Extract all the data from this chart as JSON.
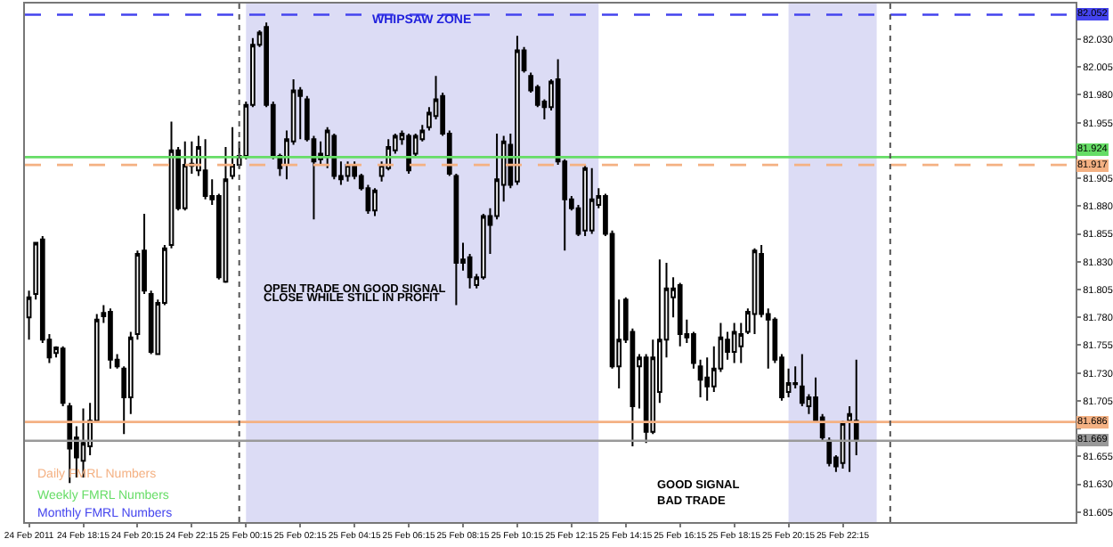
{
  "chart_data": {
    "type": "candlestick",
    "x": [
      "2011-02-24T16:15",
      "2011-02-24T16:30",
      "2011-02-24T16:45",
      "2011-02-24T17:00",
      "2011-02-24T17:15",
      "2011-02-24T17:30",
      "2011-02-24T17:45",
      "2011-02-24T18:00",
      "2011-02-24T18:15",
      "2011-02-24T18:30",
      "2011-02-24T18:45",
      "2011-02-24T19:00",
      "2011-02-24T19:15",
      "2011-02-24T19:30",
      "2011-02-24T19:45",
      "2011-02-24T20:00",
      "2011-02-24T20:15",
      "2011-02-24T20:30",
      "2011-02-24T20:45",
      "2011-02-24T21:00",
      "2011-02-24T21:15",
      "2011-02-24T21:30",
      "2011-02-24T21:45",
      "2011-02-24T22:00",
      "2011-02-24T22:15",
      "2011-02-24T22:30",
      "2011-02-24T22:45",
      "2011-02-24T23:00",
      "2011-02-24T23:15",
      "2011-02-24T23:30",
      "2011-02-24T23:45",
      "2011-02-25T00:00",
      "2011-02-25T00:15",
      "2011-02-25T00:30",
      "2011-02-25T00:45",
      "2011-02-25T01:00",
      "2011-02-25T01:15",
      "2011-02-25T01:30",
      "2011-02-25T01:45",
      "2011-02-25T02:00",
      "2011-02-25T02:15",
      "2011-02-25T02:30",
      "2011-02-25T02:45",
      "2011-02-25T03:00",
      "2011-02-25T03:15",
      "2011-02-25T03:30",
      "2011-02-25T03:45",
      "2011-02-25T04:00",
      "2011-02-25T04:15",
      "2011-02-25T04:30",
      "2011-02-25T04:45",
      "2011-02-25T05:00",
      "2011-02-25T05:15",
      "2011-02-25T05:30",
      "2011-02-25T05:45",
      "2011-02-25T06:00",
      "2011-02-25T06:15",
      "2011-02-25T06:30",
      "2011-02-25T06:45",
      "2011-02-25T07:00",
      "2011-02-25T07:15",
      "2011-02-25T07:30",
      "2011-02-25T07:45",
      "2011-02-25T08:00",
      "2011-02-25T08:15",
      "2011-02-25T08:30",
      "2011-02-25T08:45",
      "2011-02-25T09:00",
      "2011-02-25T09:15",
      "2011-02-25T09:30",
      "2011-02-25T09:45",
      "2011-02-25T10:00",
      "2011-02-25T10:15",
      "2011-02-25T10:30",
      "2011-02-25T10:45",
      "2011-02-25T11:00",
      "2011-02-25T11:15",
      "2011-02-25T11:30",
      "2011-02-25T11:45",
      "2011-02-25T12:00",
      "2011-02-25T12:15",
      "2011-02-25T12:30",
      "2011-02-25T12:45",
      "2011-02-25T13:00",
      "2011-02-25T13:15",
      "2011-02-25T13:30",
      "2011-02-25T13:45",
      "2011-02-25T14:00",
      "2011-02-25T14:15",
      "2011-02-25T14:30",
      "2011-02-25T14:45",
      "2011-02-25T15:00",
      "2011-02-25T15:15",
      "2011-02-25T15:30",
      "2011-02-25T15:45",
      "2011-02-25T16:00",
      "2011-02-25T16:15",
      "2011-02-25T16:30",
      "2011-02-25T16:45",
      "2011-02-25T17:00",
      "2011-02-25T17:15",
      "2011-02-25T17:30",
      "2011-02-25T17:45",
      "2011-02-25T18:00",
      "2011-02-25T18:15",
      "2011-02-25T18:30",
      "2011-02-25T18:45",
      "2011-02-25T19:00",
      "2011-02-25T19:15",
      "2011-02-25T19:30",
      "2011-02-25T19:45",
      "2011-02-25T20:00",
      "2011-02-25T20:15",
      "2011-02-25T20:30",
      "2011-02-25T20:45",
      "2011-02-25T21:00",
      "2011-02-25T21:15",
      "2011-02-25T21:30",
      "2011-02-25T21:45",
      "2011-02-25T22:00",
      "2011-02-25T22:15",
      "2011-02-25T22:30",
      "2011-02-25T22:45"
    ],
    "ohlc": [
      [
        81.78,
        81.804,
        81.76,
        81.798
      ],
      [
        81.801,
        81.847,
        81.796,
        81.847
      ],
      [
        81.85,
        81.853,
        81.757,
        81.76
      ],
      [
        81.76,
        81.765,
        81.739,
        81.744
      ],
      [
        81.748,
        81.754,
        81.744,
        81.753
      ],
      [
        81.752,
        81.754,
        81.7,
        81.703
      ],
      [
        81.7,
        81.703,
        81.631,
        81.662
      ],
      [
        81.672,
        81.682,
        81.636,
        81.654
      ],
      [
        81.651,
        81.698,
        81.636,
        81.667
      ],
      [
        81.664,
        81.703,
        81.656,
        81.687
      ],
      [
        81.687,
        81.783,
        81.685,
        81.778
      ],
      [
        81.781,
        81.791,
        81.775,
        81.784
      ],
      [
        81.785,
        81.788,
        81.734,
        81.742
      ],
      [
        81.742,
        81.747,
        81.734,
        81.736
      ],
      [
        81.734,
        81.736,
        81.675,
        81.708
      ],
      [
        81.708,
        81.767,
        81.693,
        81.762
      ],
      [
        81.765,
        81.84,
        81.76,
        81.837
      ],
      [
        81.84,
        81.873,
        81.801,
        81.804
      ],
      [
        81.801,
        81.804,
        81.747,
        81.749
      ],
      [
        81.747,
        81.796,
        81.747,
        81.793
      ],
      [
        81.793,
        81.845,
        81.791,
        81.842
      ],
      [
        81.845,
        81.956,
        81.842,
        81.93
      ],
      [
        81.93,
        81.933,
        81.876,
        81.878
      ],
      [
        81.878,
        81.938,
        81.876,
        81.917
      ],
      [
        81.918,
        81.938,
        81.909,
        81.916
      ],
      [
        81.912,
        81.943,
        81.907,
        81.933
      ],
      [
        81.912,
        81.94,
        81.886,
        81.889
      ],
      [
        81.886,
        81.904,
        81.881,
        81.889
      ],
      [
        81.889,
        81.891,
        81.814,
        81.816
      ],
      [
        81.812,
        81.933,
        81.811,
        81.904
      ],
      [
        81.907,
        81.951,
        81.904,
        81.917
      ],
      [
        81.917,
        81.938,
        81.914,
        81.925
      ],
      [
        81.925,
        81.974,
        81.922,
        81.971
      ],
      [
        81.971,
        82.031,
        81.969,
        82.025
      ],
      [
        82.025,
        82.038,
        82.023,
        82.036
      ],
      [
        82.041,
        82.045,
        81.969,
        81.971
      ],
      [
        81.971,
        81.974,
        81.922,
        81.925
      ],
      [
        81.925,
        81.927,
        81.907,
        81.914
      ],
      [
        81.917,
        81.948,
        81.904,
        81.94
      ],
      [
        81.938,
        81.994,
        81.935,
        81.984
      ],
      [
        81.984,
        81.987,
        81.94,
        81.979
      ],
      [
        81.976,
        81.979,
        81.938,
        81.94
      ],
      [
        81.94,
        81.943,
        81.868,
        81.92
      ],
      [
        81.922,
        81.938,
        81.917,
        81.927
      ],
      [
        81.925,
        81.951,
        81.914,
        81.948
      ],
      [
        81.943,
        81.945,
        81.904,
        81.907
      ],
      [
        81.907,
        81.92,
        81.899,
        81.904
      ],
      [
        81.907,
        81.92,
        81.902,
        81.917
      ],
      [
        81.917,
        81.92,
        81.904,
        81.907
      ],
      [
        81.907,
        81.909,
        81.894,
        81.896
      ],
      [
        81.896,
        81.899,
        81.873,
        81.876
      ],
      [
        81.876,
        81.896,
        81.871,
        81.894
      ],
      [
        81.907,
        81.92,
        81.902,
        81.917
      ],
      [
        81.914,
        81.94,
        81.912,
        81.933
      ],
      [
        81.93,
        81.945,
        81.927,
        81.943
      ],
      [
        81.94,
        81.948,
        81.935,
        81.945
      ],
      [
        81.943,
        81.945,
        81.909,
        81.912
      ],
      [
        81.927,
        81.945,
        81.925,
        81.943
      ],
      [
        81.94,
        81.953,
        81.938,
        81.948
      ],
      [
        81.951,
        81.969,
        81.948,
        81.964
      ],
      [
        81.961,
        81.997,
        81.958,
        81.976
      ],
      [
        81.979,
        81.982,
        81.943,
        81.945
      ],
      [
        81.945,
        81.948,
        81.907,
        81.909
      ],
      [
        81.907,
        81.909,
        81.791,
        81.829
      ],
      [
        81.829,
        81.847,
        81.822,
        81.832
      ],
      [
        81.834,
        81.837,
        81.806,
        81.816
      ],
      [
        81.809,
        81.819,
        81.806,
        81.816
      ],
      [
        81.816,
        81.873,
        81.814,
        81.871
      ],
      [
        81.871,
        81.878,
        81.837,
        81.863
      ],
      [
        81.871,
        81.945,
        81.868,
        81.904
      ],
      [
        81.899,
        81.943,
        81.884,
        81.938
      ],
      [
        81.935,
        81.945,
        81.896,
        81.899
      ],
      [
        81.902,
        82.033,
        81.899,
        82.02
      ],
      [
        82.02,
        82.023,
        82.0,
        82.002
      ],
      [
        81.997,
        82.0,
        81.982,
        81.984
      ],
      [
        81.987,
        81.989,
        81.969,
        81.971
      ],
      [
        81.974,
        81.976,
        81.958,
        81.969
      ],
      [
        81.969,
        81.994,
        81.966,
        81.992
      ],
      [
        81.994,
        82.012,
        81.917,
        81.92
      ],
      [
        81.92,
        81.922,
        81.84,
        81.886
      ],
      [
        81.886,
        81.889,
        81.876,
        81.878
      ],
      [
        81.878,
        81.881,
        81.853,
        81.855
      ],
      [
        81.858,
        81.917,
        81.853,
        81.914
      ],
      [
        81.858,
        81.914,
        81.855,
        81.886
      ],
      [
        81.881,
        81.896,
        81.878,
        81.889
      ],
      [
        81.889,
        81.891,
        81.853,
        81.855
      ],
      [
        81.855,
        81.858,
        81.734,
        81.736
      ],
      [
        81.736,
        81.796,
        81.716,
        81.76
      ],
      [
        81.796,
        81.798,
        81.757,
        81.76
      ],
      [
        81.767,
        81.77,
        81.664,
        81.7
      ],
      [
        81.736,
        81.747,
        81.698,
        81.744
      ],
      [
        81.744,
        81.747,
        81.667,
        81.677
      ],
      [
        81.677,
        81.76,
        81.675,
        81.744
      ],
      [
        81.713,
        81.832,
        81.703,
        81.76
      ],
      [
        81.76,
        81.829,
        81.744,
        81.806
      ],
      [
        81.798,
        81.816,
        81.78,
        81.806
      ],
      [
        81.809,
        81.811,
        81.754,
        81.765
      ],
      [
        81.765,
        81.778,
        81.757,
        81.762
      ],
      [
        81.765,
        81.767,
        81.734,
        81.739
      ],
      [
        81.736,
        81.742,
        81.708,
        81.724
      ],
      [
        81.726,
        81.744,
        81.705,
        81.718
      ],
      [
        81.718,
        81.754,
        81.713,
        81.734
      ],
      [
        81.734,
        81.775,
        81.731,
        81.762
      ],
      [
        81.76,
        81.767,
        81.742,
        81.749
      ],
      [
        81.749,
        81.775,
        81.739,
        81.767
      ],
      [
        81.754,
        81.775,
        81.739,
        81.765
      ],
      [
        81.767,
        81.788,
        81.765,
        81.785
      ],
      [
        81.783,
        81.842,
        81.765,
        81.84
      ],
      [
        81.837,
        81.845,
        81.78,
        81.783
      ],
      [
        81.783,
        81.788,
        81.734,
        81.778
      ],
      [
        81.778,
        81.78,
        81.739,
        81.742
      ],
      [
        81.744,
        81.747,
        81.705,
        81.708
      ],
      [
        81.713,
        81.734,
        81.708,
        81.721
      ],
      [
        81.72,
        81.736,
        81.716,
        81.721
      ],
      [
        81.718,
        81.747,
        81.7,
        81.703
      ],
      [
        81.7,
        81.711,
        81.693,
        81.708
      ],
      [
        81.708,
        81.726,
        81.685,
        81.687
      ],
      [
        81.69,
        81.693,
        81.669,
        81.672
      ],
      [
        81.669,
        81.672,
        81.646,
        81.649
      ],
      [
        81.654,
        81.656,
        81.641,
        81.646
      ],
      [
        81.649,
        81.687,
        81.644,
        81.685
      ],
      [
        81.687,
        81.7,
        81.641,
        81.693
      ],
      [
        81.687,
        81.742,
        81.656,
        81.669
      ]
    ],
    "xlim": [
      "2011-02-24T16:06",
      "2011-02-26T06:50"
    ],
    "xticks": [
      {
        "value": "2011-02-24T16:15",
        "label": "24 Feb 2011"
      },
      {
        "value": "2011-02-24T18:15",
        "label": "24 Feb 18:15"
      },
      {
        "value": "2011-02-24T20:15",
        "label": "24 Feb 20:15"
      },
      {
        "value": "2011-02-24T22:15",
        "label": "24 Feb 22:15"
      },
      {
        "value": "2011-02-25T00:15",
        "label": "25 Feb 00:15"
      },
      {
        "value": "2011-02-25T02:15",
        "label": "25 Feb 02:15"
      },
      {
        "value": "2011-02-25T04:15",
        "label": "25 Feb 04:15"
      },
      {
        "value": "2011-02-25T06:15",
        "label": "25 Feb 06:15"
      },
      {
        "value": "2011-02-25T08:15",
        "label": "25 Feb 08:15"
      },
      {
        "value": "2011-02-25T10:15",
        "label": "25 Feb 10:15"
      },
      {
        "value": "2011-02-25T12:15",
        "label": "25 Feb 12:15"
      },
      {
        "value": "2011-02-25T14:15",
        "label": "25 Feb 14:15"
      },
      {
        "value": "2011-02-25T16:15",
        "label": "25 Feb 16:15"
      },
      {
        "value": "2011-02-25T18:15",
        "label": "25 Feb 18:15"
      },
      {
        "value": "2011-02-25T20:15",
        "label": "25 Feb 20:15"
      },
      {
        "value": "2011-02-25T22:15",
        "label": "25 Feb 22:15"
      }
    ],
    "ylim": [
      81.596,
      82.062
    ],
    "yticks": [
      81.605,
      {
        "value": 81.63,
        "label": "81.630"
      },
      81.655,
      {
        "value": 81.68,
        "label": null
      },
      81.705,
      {
        "value": 81.73,
        "label": "81.730"
      },
      81.755,
      {
        "value": 81.78,
        "label": "81.780"
      },
      81.805,
      {
        "value": 81.83,
        "label": "81.830"
      },
      81.855,
      {
        "value": 81.88,
        "label": "81.880"
      },
      81.905,
      {
        "value": 81.93,
        "label": null
      },
      81.955,
      {
        "value": 81.98,
        "label": "81.980"
      },
      82.005,
      {
        "value": 82.03,
        "label": "82.030"
      }
    ],
    "ref_lines": [
      {
        "axis": "y",
        "value": 81.917,
        "label": "81.917",
        "color": "#f4b183",
        "line_style": "dashed"
      },
      {
        "axis": "y",
        "value": 81.924,
        "label": "81.924",
        "color": "#66dd66",
        "line_style": "solid"
      },
      {
        "axis": "y",
        "value": 82.052,
        "label": "82.052",
        "color": "#4444ee",
        "line_style": "dashed"
      },
      {
        "axis": "y",
        "value": 81.686,
        "label": "81.686",
        "color": "#f4b183",
        "line_style": "solid"
      },
      {
        "axis": "y",
        "value": 81.669,
        "label": "81.669",
        "color": "#999999",
        "line_style": "solid"
      },
      {
        "axis": "x",
        "value": "2011-02-25T00:00",
        "color": "#555555",
        "line_style": "dotted"
      },
      {
        "axis": "x",
        "value": "2011-02-26T00:00",
        "color": "#555555",
        "line_style": "dotted"
      }
    ],
    "bands": [
      {
        "axis": "x",
        "from": "2011-02-25T00:15",
        "to": "2011-02-25T13:15",
        "label": "WHIPSAW ZONE",
        "color": "#dcdcf5"
      },
      {
        "axis": "x",
        "from": "2011-02-25T20:15",
        "to": "2011-02-25T23:30",
        "color": "#dcdcf5"
      }
    ],
    "annotations": [
      "OPEN TRADE ON GOOD SIGNAL",
      "CLOSE WHILE STILL IN PROFIT",
      "GOOD SIGNAL",
      "BAD TRADE",
      "Daily FMRL Numbers",
      "Weekly FMRL Numbers",
      "Monthly FMRL Numbers"
    ],
    "grid": false
  }
}
